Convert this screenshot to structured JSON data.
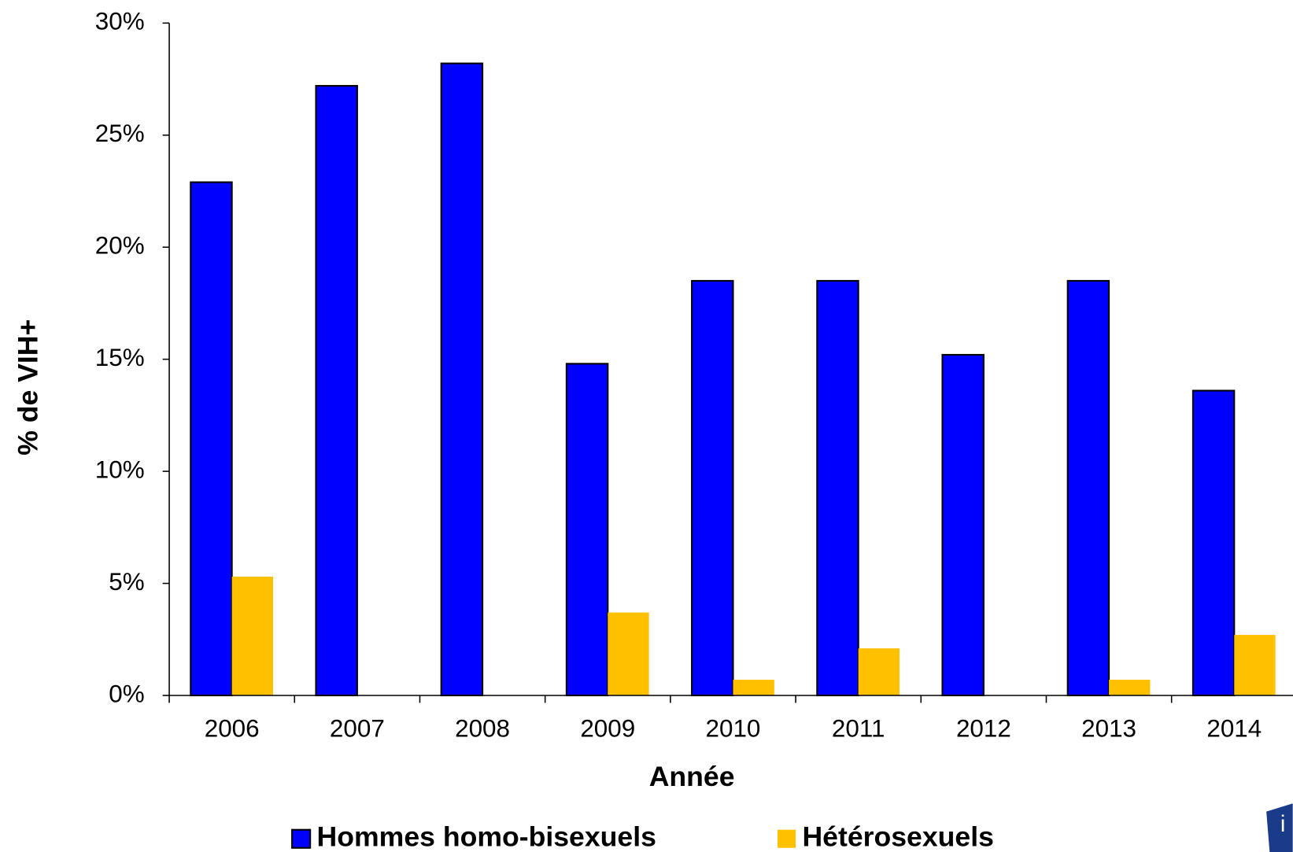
{
  "chart_data": {
    "type": "bar",
    "categories": [
      "2006",
      "2007",
      "2008",
      "2009",
      "2010",
      "2011",
      "2012",
      "2013",
      "2014"
    ],
    "series": [
      {
        "name": "Hommes homo-bisexuels",
        "color": "#0000ff",
        "values": [
          22.9,
          27.2,
          28.2,
          14.8,
          18.5,
          18.5,
          15.2,
          18.5,
          13.6
        ]
      },
      {
        "name": "Hétérosexuels",
        "color": "#ffc000",
        "values": [
          5.3,
          0,
          0,
          3.7,
          0.7,
          2.1,
          0,
          0.7,
          2.7
        ]
      }
    ],
    "ylim": [
      0,
      30
    ],
    "yticks": [
      {
        "value": 0,
        "label": "0%"
      },
      {
        "value": 5,
        "label": "5%"
      },
      {
        "value": 10,
        "label": "10%"
      },
      {
        "value": 15,
        "label": "15%"
      },
      {
        "value": 20,
        "label": "20%"
      },
      {
        "value": 25,
        "label": "25%"
      },
      {
        "value": 30,
        "label": "30%"
      }
    ],
    "ylabel": "% de VIH+",
    "xlabel": "Année",
    "legend": "bottom"
  }
}
